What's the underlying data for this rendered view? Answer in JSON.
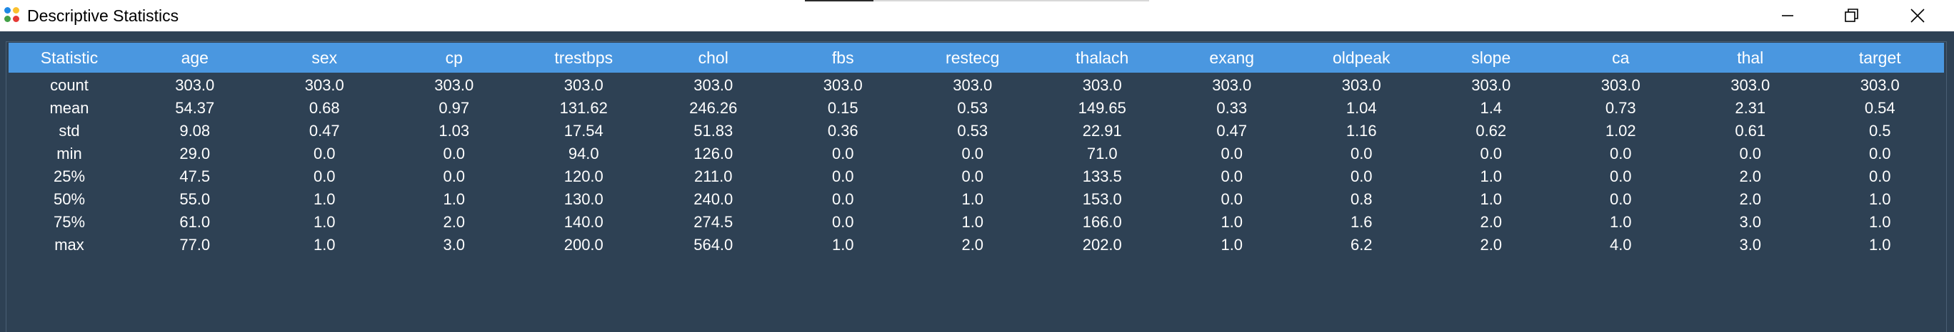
{
  "window": {
    "title": "Descriptive Statistics",
    "icon": "app-dots-icon"
  },
  "table": {
    "headers": [
      "Statistic",
      "age",
      "sex",
      "cp",
      "trestbps",
      "chol",
      "fbs",
      "restecg",
      "thalach",
      "exang",
      "oldpeak",
      "slope",
      "ca",
      "thal",
      "target"
    ],
    "rows": [
      [
        "count",
        "303.0",
        "303.0",
        "303.0",
        "303.0",
        "303.0",
        "303.0",
        "303.0",
        "303.0",
        "303.0",
        "303.0",
        "303.0",
        "303.0",
        "303.0",
        "303.0"
      ],
      [
        "mean",
        "54.37",
        "0.68",
        "0.97",
        "131.62",
        "246.26",
        "0.15",
        "0.53",
        "149.65",
        "0.33",
        "1.04",
        "1.4",
        "0.73",
        "2.31",
        "0.54"
      ],
      [
        "std",
        "9.08",
        "0.47",
        "1.03",
        "17.54",
        "51.83",
        "0.36",
        "0.53",
        "22.91",
        "0.47",
        "1.16",
        "0.62",
        "1.02",
        "0.61",
        "0.5"
      ],
      [
        "min",
        "29.0",
        "0.0",
        "0.0",
        "94.0",
        "126.0",
        "0.0",
        "0.0",
        "71.0",
        "0.0",
        "0.0",
        "0.0",
        "0.0",
        "0.0",
        "0.0"
      ],
      [
        "25%",
        "47.5",
        "0.0",
        "0.0",
        "120.0",
        "211.0",
        "0.0",
        "0.0",
        "133.5",
        "0.0",
        "0.0",
        "1.0",
        "0.0",
        "2.0",
        "0.0"
      ],
      [
        "50%",
        "55.0",
        "1.0",
        "1.0",
        "130.0",
        "240.0",
        "0.0",
        "1.0",
        "153.0",
        "0.0",
        "0.8",
        "1.0",
        "0.0",
        "2.0",
        "1.0"
      ],
      [
        "75%",
        "61.0",
        "1.0",
        "2.0",
        "140.0",
        "274.5",
        "0.0",
        "1.0",
        "166.0",
        "1.0",
        "1.6",
        "2.0",
        "1.0",
        "3.0",
        "1.0"
      ],
      [
        "max",
        "77.0",
        "1.0",
        "3.0",
        "200.0",
        "564.0",
        "1.0",
        "2.0",
        "202.0",
        "1.0",
        "6.2",
        "2.0",
        "4.0",
        "3.0",
        "1.0"
      ]
    ]
  },
  "colors": {
    "background": "#2e4154",
    "header": "#4a97e0",
    "text": "#ffffff"
  }
}
